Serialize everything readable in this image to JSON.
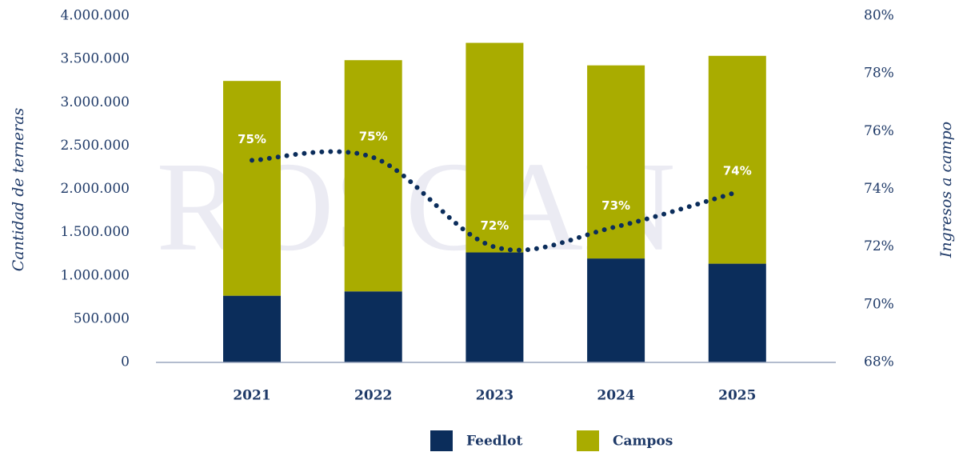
{
  "chart_data": {
    "type": "bar",
    "watermark": "ROSCAN",
    "ylabel": "Cantidad de terneras",
    "y2label": "Ingresos a campo",
    "categories": [
      "2021",
      "2022",
      "2023",
      "2024",
      "2025"
    ],
    "series": [
      {
        "name": "Feedlot",
        "color": "#0b2d5b",
        "values": [
          770000,
          820000,
          1270000,
          1200000,
          1140000
        ]
      },
      {
        "name": "Campos",
        "color": "#a9ac00",
        "values": [
          2480000,
          2670000,
          2420000,
          2230000,
          2400000
        ]
      }
    ],
    "line": {
      "type": "line",
      "axis": "y2",
      "color": "#0b2d5b",
      "values": [
        75.0,
        75.1,
        72.0,
        72.7,
        73.9
      ],
      "value_labels": [
        "75%",
        "75%",
        "72%",
        "73%",
        "74%"
      ]
    },
    "ylim": [
      0,
      4000000
    ],
    "yticks": [
      0,
      {
        "value": 500000,
        "label": "500.000"
      },
      {
        "value": 1000000,
        "label": "1.000.000"
      },
      {
        "value": 1500000,
        "label": "1.500.000"
      },
      {
        "value": 2000000,
        "label": "2.000.000"
      },
      {
        "value": 2500000,
        "label": "2.500.000"
      },
      {
        "value": 3000000,
        "label": "3.000.000"
      },
      {
        "value": 3500000,
        "label": "3.500.000"
      },
      {
        "value": 4000000,
        "label": "4.000.000"
      }
    ],
    "y2lim": [
      68,
      80
    ],
    "y2ticks": [
      {
        "value": 68,
        "label": "68%"
      },
      {
        "value": 70,
        "label": "70%"
      },
      {
        "value": 72,
        "label": "72%"
      },
      {
        "value": 74,
        "label": "74%"
      },
      {
        "value": 76,
        "label": "76%"
      },
      {
        "value": 78,
        "label": "78%"
      },
      {
        "value": 80,
        "label": "80%"
      }
    ],
    "stacked": true,
    "legend": "bottom"
  }
}
